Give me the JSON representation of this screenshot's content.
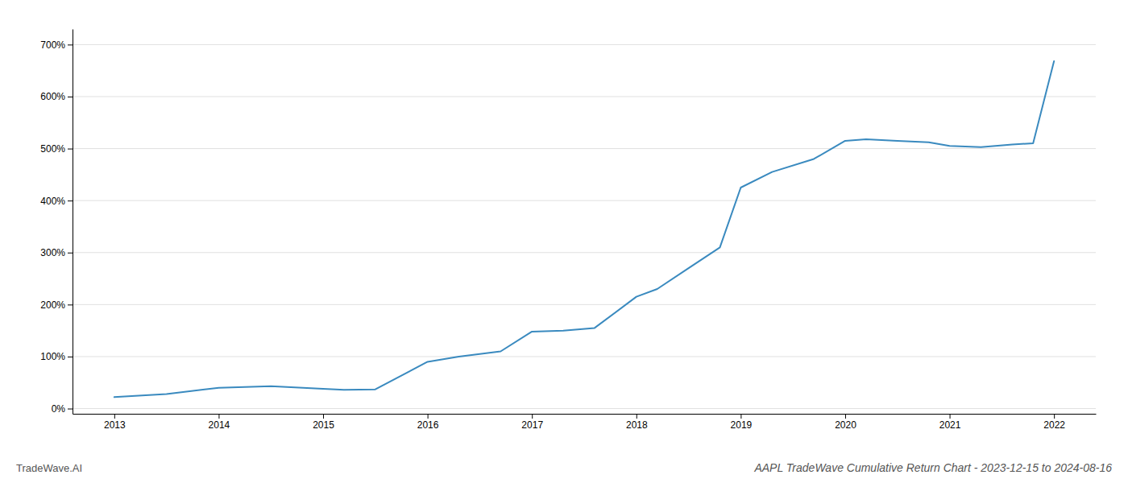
{
  "chart_data": {
    "type": "line",
    "title": "AAPL TradeWave Cumulative Return Chart - 2023-12-15 to 2024-08-16",
    "annotations": [
      "TradeWave.AI"
    ],
    "x": [
      2013.0,
      2013.5,
      2014.0,
      2014.5,
      2015.0,
      2015.2,
      2015.5,
      2016.0,
      2016.3,
      2016.7,
      2017.0,
      2017.3,
      2017.6,
      2018.0,
      2018.2,
      2018.5,
      2018.8,
      2019.0,
      2019.3,
      2019.7,
      2020.0,
      2020.2,
      2020.5,
      2020.8,
      2021.0,
      2021.3,
      2021.6,
      2021.8,
      2022.0
    ],
    "values": [
      22,
      28,
      40,
      43,
      38,
      36,
      37,
      90,
      100,
      110,
      148,
      150,
      155,
      215,
      230,
      270,
      310,
      425,
      455,
      480,
      515,
      518,
      515,
      512,
      505,
      503,
      508,
      510,
      668
    ],
    "color": "#3a8abf",
    "xlim": [
      2012.6,
      2022.4
    ],
    "xticks": [
      2013,
      2014,
      2015,
      2016,
      2017,
      2018,
      2019,
      2020,
      2021,
      2022
    ],
    "ylim": [
      -10,
      730
    ],
    "yticks": [
      {
        "value": 0,
        "label": "0%"
      },
      {
        "value": 100,
        "label": "100%"
      },
      {
        "value": 200,
        "label": "200%"
      },
      {
        "value": 300,
        "label": "300%"
      },
      {
        "value": 400,
        "label": "400%"
      },
      {
        "value": 500,
        "label": "500%"
      },
      {
        "value": 600,
        "label": "600%"
      },
      {
        "value": 700,
        "label": "700%"
      }
    ],
    "grid": true
  }
}
